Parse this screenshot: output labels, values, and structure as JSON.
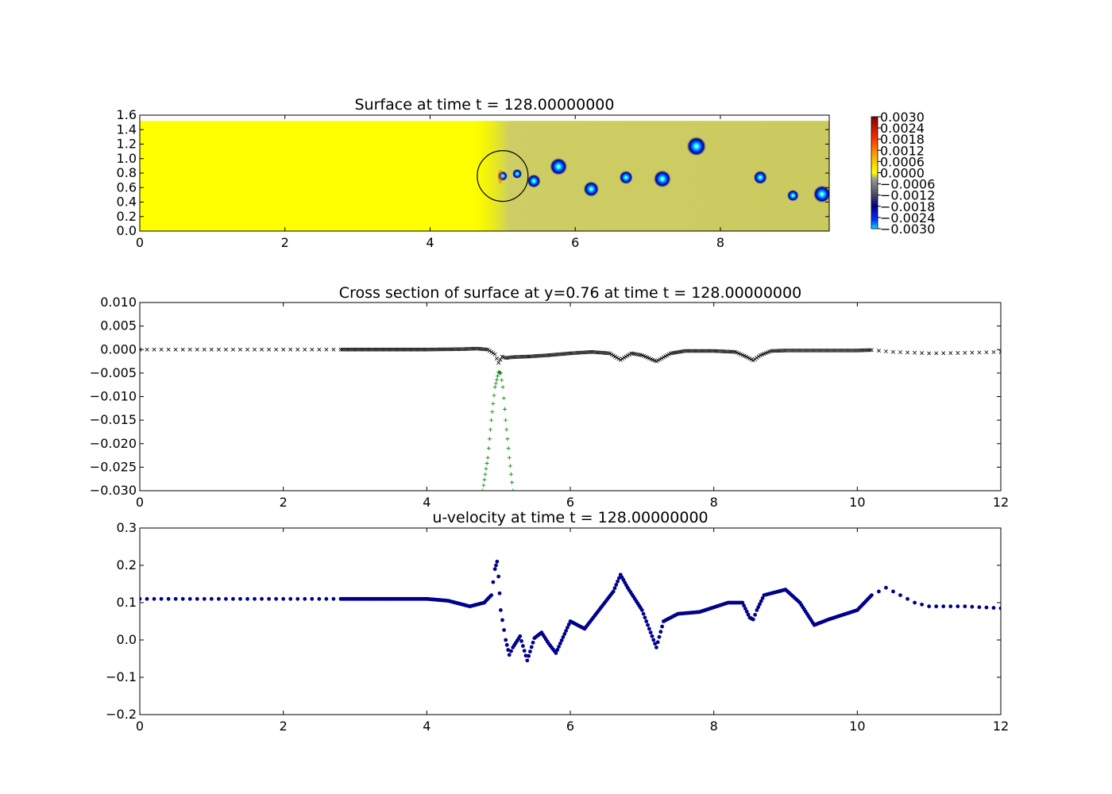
{
  "chart_data": [
    {
      "type": "heatmap",
      "title": "Surface at time t =   128.00000000",
      "xlim": [
        0,
        9.5
      ],
      "ylim": [
        0,
        1.6
      ],
      "x_ticks": [
        "0",
        "2",
        "4",
        "6",
        "8"
      ],
      "x_tick_values": [
        0,
        2,
        4,
        6,
        8
      ],
      "y_ticks": [
        "0.0",
        "0.2",
        "0.4",
        "0.6",
        "0.8",
        "1.0",
        "1.2",
        "1.4",
        "1.6"
      ],
      "y_tick_values": [
        0,
        0.2,
        0.4,
        0.6,
        0.8,
        1.0,
        1.2,
        1.4,
        1.6
      ],
      "domain_ymax": 1.52,
      "background_value": 0.0,
      "wake_region": {
        "x_from": 4.6,
        "x_to": 9.5,
        "value": -0.0005
      },
      "circle": {
        "cx": 5.0,
        "cy": 0.76,
        "r": 0.35
      },
      "vortices": [
        {
          "x": 5.0,
          "y": 0.76,
          "r": 0.05,
          "value": -0.003
        },
        {
          "x": 5.2,
          "y": 0.79,
          "r": 0.05,
          "value": -0.0024
        },
        {
          "x": 5.43,
          "y": 0.69,
          "r": 0.07,
          "value": -0.0028
        },
        {
          "x": 5.77,
          "y": 0.89,
          "r": 0.09,
          "value": -0.003
        },
        {
          "x": 6.22,
          "y": 0.58,
          "r": 0.08,
          "value": -0.003
        },
        {
          "x": 6.7,
          "y": 0.74,
          "r": 0.07,
          "value": -0.0026
        },
        {
          "x": 7.2,
          "y": 0.72,
          "r": 0.09,
          "value": -0.003
        },
        {
          "x": 7.67,
          "y": 1.17,
          "r": 0.1,
          "value": -0.003
        },
        {
          "x": 8.55,
          "y": 0.74,
          "r": 0.07,
          "value": -0.0026
        },
        {
          "x": 9.0,
          "y": 0.49,
          "r": 0.06,
          "value": -0.0026
        },
        {
          "x": 9.4,
          "y": 0.51,
          "r": 0.09,
          "value": -0.003
        }
      ],
      "colorbar": {
        "ticks": [
          "0.0030",
          "0.0024",
          "0.0018",
          "0.0012",
          "0.0006",
          "0.0000",
          "−0.0006",
          "−0.0012",
          "−0.0018",
          "−0.0024",
          "−0.0030"
        ],
        "vmin": -0.003,
        "vmax": 0.003,
        "colors": [
          "#00e5ff",
          "#0033ff",
          "#00007f",
          "#555566",
          "#999999",
          "#ffff00",
          "#ffaa00",
          "#ff3300",
          "#7f0000"
        ]
      }
    },
    {
      "type": "scatter",
      "title": "Cross section of surface at y=0.76 at time t =   128.00000000",
      "xlim": [
        0,
        12
      ],
      "ylim": [
        -0.03,
        0.01
      ],
      "x_ticks": [
        "0",
        "2",
        "4",
        "6",
        "8",
        "10",
        "12"
      ],
      "x_tick_values": [
        0,
        2,
        4,
        6,
        8,
        10,
        12
      ],
      "y_ticks": [
        "0.010",
        "0.005",
        "0.000",
        "−0.005",
        "−0.010",
        "−0.015",
        "−0.020",
        "−0.025",
        "−0.030"
      ],
      "y_tick_values": [
        0.01,
        0.005,
        0,
        -0.005,
        -0.01,
        -0.015,
        -0.02,
        -0.025,
        -0.03
      ],
      "series": [
        {
          "marker": "x",
          "color": "#000000",
          "x": [
            0.0,
            0.5,
            1.0,
            1.5,
            2.0,
            2.5,
            2.8,
            3.5,
            4.0,
            4.5,
            4.7,
            4.85,
            4.95,
            5.0,
            5.05,
            5.1,
            5.2,
            5.4,
            5.7,
            6.0,
            6.3,
            6.55,
            6.7,
            6.85,
            7.0,
            7.2,
            7.4,
            7.6,
            8.0,
            8.3,
            8.45,
            8.55,
            8.65,
            8.8,
            9.0,
            9.5,
            10.0,
            10.2,
            10.5,
            11.0,
            11.5,
            12.0
          ],
          "y": [
            0.0,
            0.0,
            0.0,
            0.0,
            0.0,
            0.0,
            0.0,
            0.0,
            0.0,
            0.0001,
            0.0002,
            0.0,
            -0.001,
            -0.0028,
            -0.0015,
            -0.0018,
            -0.0016,
            -0.0015,
            -0.0012,
            -0.0008,
            -0.0005,
            -0.0008,
            -0.0022,
            -0.0008,
            -0.0012,
            -0.0025,
            -0.0008,
            -0.0003,
            -0.0003,
            -0.0005,
            -0.0015,
            -0.0023,
            -0.0012,
            -0.0003,
            -0.0002,
            -0.0002,
            -0.0002,
            -0.0001,
            -0.0005,
            -0.0008,
            -0.0007,
            -0.0005
          ]
        },
        {
          "marker": "+",
          "color": "#008000",
          "x": [
            4.78,
            4.85,
            4.9,
            4.95,
            5.0,
            5.03,
            5.06,
            5.1,
            5.15,
            5.2
          ],
          "y": [
            -0.03,
            -0.023,
            -0.015,
            -0.008,
            -0.0048,
            -0.005,
            -0.008,
            -0.015,
            -0.023,
            -0.03
          ]
        }
      ]
    },
    {
      "type": "scatter",
      "title": "u-velocity at time t =   128.00000000",
      "xlim": [
        0,
        12
      ],
      "ylim": [
        -0.2,
        0.3
      ],
      "x_ticks": [
        "0",
        "2",
        "4",
        "6",
        "8",
        "10",
        "12"
      ],
      "x_tick_values": [
        0,
        2,
        4,
        6,
        8,
        10,
        12
      ],
      "y_ticks": [
        "0.3",
        "0.2",
        "0.1",
        "0.0",
        "−0.1",
        "−0.2"
      ],
      "y_tick_values": [
        0.3,
        0.2,
        0.1,
        0.0,
        -0.1,
        -0.2
      ],
      "series": [
        {
          "marker": "o",
          "color": "#00008b",
          "x": [
            0.0,
            1.0,
            2.0,
            2.8,
            3.5,
            4.0,
            4.3,
            4.6,
            4.8,
            4.9,
            4.95,
            4.98,
            5.0,
            5.03,
            5.1,
            5.15,
            5.2,
            5.3,
            5.4,
            5.5,
            5.6,
            5.7,
            5.8,
            6.0,
            6.2,
            6.4,
            6.6,
            6.7,
            6.8,
            7.0,
            7.2,
            7.3,
            7.5,
            7.8,
            8.2,
            8.4,
            8.5,
            8.55,
            8.6,
            8.7,
            9.0,
            9.2,
            9.4,
            9.6,
            10.0,
            10.2,
            10.4,
            10.6,
            10.8,
            11.0,
            11.5,
            12.0
          ],
          "y": [
            0.11,
            0.11,
            0.11,
            0.11,
            0.11,
            0.11,
            0.105,
            0.09,
            0.1,
            0.12,
            0.19,
            0.21,
            0.17,
            0.08,
            0.0,
            -0.04,
            -0.02,
            0.01,
            -0.055,
            0.005,
            0.02,
            -0.01,
            -0.035,
            0.05,
            0.03,
            0.08,
            0.13,
            0.175,
            0.14,
            0.08,
            -0.02,
            0.05,
            0.07,
            0.075,
            0.1,
            0.1,
            0.06,
            0.055,
            0.08,
            0.12,
            0.135,
            0.1,
            0.04,
            0.055,
            0.08,
            0.12,
            0.14,
            0.12,
            0.1,
            0.09,
            0.09,
            0.085
          ]
        }
      ]
    }
  ]
}
